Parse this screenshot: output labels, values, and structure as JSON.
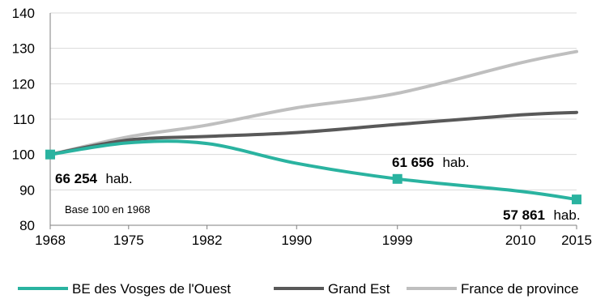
{
  "chart_data": {
    "type": "line",
    "x": [
      1968,
      1975,
      1982,
      1990,
      1999,
      2010,
      2015
    ],
    "xticks": [
      "1968",
      "1975",
      "1982",
      "1990",
      "1999",
      "2010",
      "2015"
    ],
    "yticks": [
      "80",
      "90",
      "100",
      "110",
      "120",
      "130",
      "140"
    ],
    "ylim": [
      80,
      140
    ],
    "grid": "horizontal",
    "legend_position": "bottom",
    "note": "Base 100 en 1968",
    "series": [
      {
        "name": "BE des Vosges de l'Ouest",
        "color": "#2ab3a0",
        "values": [
          100,
          103.3,
          103.1,
          97.5,
          93.1,
          89.6,
          87.3
        ],
        "markers": [
          0,
          4,
          6
        ]
      },
      {
        "name": "Grand Est",
        "color": "#595959",
        "values": [
          100,
          104.1,
          105.1,
          106.2,
          108.5,
          111.2,
          111.9
        ]
      },
      {
        "name": "France de province",
        "color": "#bfbfbf",
        "values": [
          100,
          105,
          108.3,
          113.2,
          117.3,
          125.9,
          129.1
        ]
      }
    ],
    "annotations": [
      {
        "number": "66 254",
        "unit": "hab."
      },
      {
        "number": "61 656",
        "unit": "hab."
      },
      {
        "number": "57 861",
        "unit": "hab."
      }
    ]
  }
}
